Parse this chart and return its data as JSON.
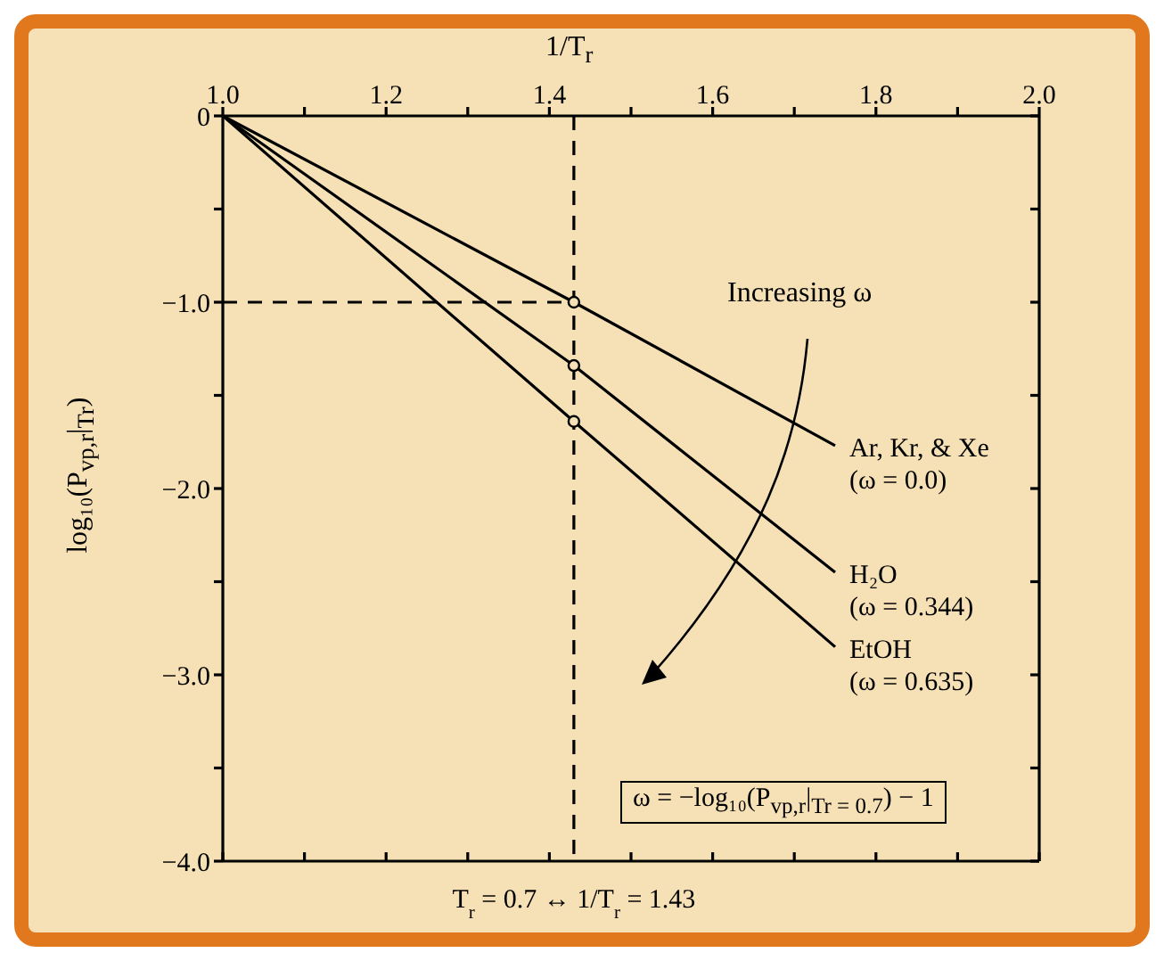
{
  "chart_data": {
    "type": "line",
    "xlabel": "1/T$_{r}$",
    "ylabel": "log₁₀(P$_{vp,r}$|$_{Tr}$)",
    "xlim": [
      1.0,
      2.0
    ],
    "xticks": [
      {
        "value": 1.0,
        "label": "1.0"
      },
      {
        "value": 1.1,
        "label": null
      },
      {
        "value": 1.2,
        "label": "1.2"
      },
      {
        "value": 1.3,
        "label": null
      },
      {
        "value": 1.4,
        "label": "1.4"
      },
      {
        "value": 1.5,
        "label": null
      },
      {
        "value": 1.6,
        "label": "1.6"
      },
      {
        "value": 1.7,
        "label": null
      },
      {
        "value": 1.8,
        "label": "1.8"
      },
      {
        "value": 1.9,
        "label": null
      },
      {
        "value": 2.0,
        "label": "2.0"
      }
    ],
    "ylim": [
      -4.0,
      0
    ],
    "yticks": [
      {
        "value": 0,
        "label": "0"
      },
      {
        "value": -0.5,
        "label": null
      },
      {
        "value": -1.0,
        "label": "−1.0"
      },
      {
        "value": -1.5,
        "label": null
      },
      {
        "value": -2.0,
        "label": "−2.0"
      },
      {
        "value": -2.5,
        "label": null
      },
      {
        "value": -3.0,
        "label": "−3.0"
      },
      {
        "value": -3.5,
        "label": null
      },
      {
        "value": -4.0,
        "label": "−4.0"
      }
    ],
    "series": [
      {
        "name": "Ar, Kr, & Xe (ω = 0.0)",
        "color": "#000000",
        "x": [
          1.0,
          1.43,
          1.75
        ],
        "values": [
          0,
          -1.0,
          -1.77
        ]
      },
      {
        "name": "H₂O (ω = 0.344)",
        "color": "#000000",
        "x": [
          1.0,
          1.43,
          1.75
        ],
        "values": [
          0,
          -1.34,
          -2.45
        ]
      },
      {
        "name": "EtOH (ω = 0.635)",
        "color": "#000000",
        "x": [
          1.0,
          1.43,
          1.75
        ],
        "values": [
          0,
          -1.64,
          -2.85
        ]
      },
      {
        "type": "scatter",
        "color": "#000000",
        "x": [
          1.43,
          1.43,
          1.43
        ],
        "values": [
          -1.0,
          -1.34,
          -1.64
        ]
      }
    ],
    "ref_lines": [
      {
        "axis": "x",
        "value": 1.43,
        "label": "T$_{r}$ = 0.7 ↔ 1/T$_{r}$ = 1.43",
        "line_style": "dashed",
        "color": "#000000"
      },
      {
        "axis": "y",
        "value": -1.0,
        "line_style": "dashed",
        "color": "#000000"
      }
    ],
    "annotations": [
      "Increasing ω",
      "ω = −log₁₀(P$_{vp,r}$|$_{Tr = 0.7}$) − 1"
    ],
    "legend": "right",
    "line_style": "solid"
  }
}
